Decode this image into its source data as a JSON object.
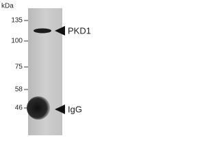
{
  "unit_label": "kDa",
  "markers": [
    "135",
    "100",
    "75",
    "58",
    "46"
  ],
  "bands": [
    "PKD1",
    "IgG"
  ]
}
